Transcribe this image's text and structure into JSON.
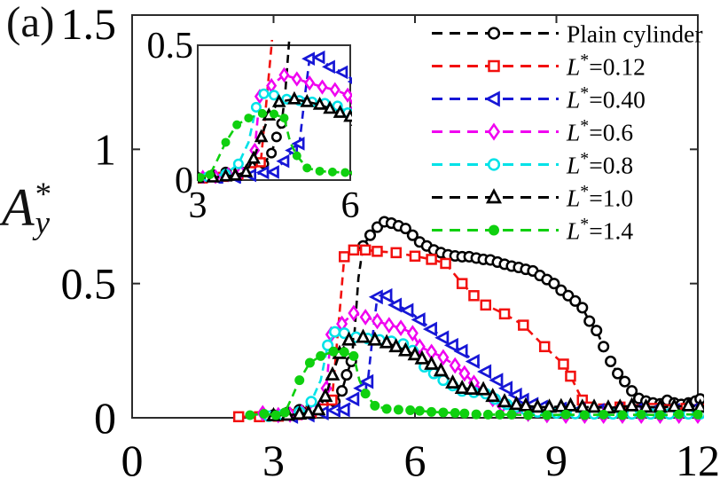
{
  "panel_label": "(a)",
  "chart_data": {
    "type": "line",
    "title": "",
    "xlabel": "",
    "ylabel": {
      "base": "A",
      "sup": "*",
      "sub": "y"
    },
    "xlim": [
      0,
      12
    ],
    "ylim": [
      0,
      1.5
    ],
    "x_ticks": [
      0,
      3,
      6,
      9,
      12
    ],
    "x_tick_labels": [
      "0",
      "3",
      "6",
      "9",
      "12"
    ],
    "y_ticks": [
      0,
      0.5,
      1,
      1.5
    ],
    "y_tick_labels": [
      "0",
      "0.5",
      "1",
      "1.5"
    ],
    "grid": false,
    "axis_color": "#2b2b2b",
    "background": "#ffffff",
    "legend_position": "upper right",
    "inset": {
      "xlim": [
        3,
        6
      ],
      "ylim": [
        0,
        0.5
      ],
      "x_ticks": [
        3,
        6
      ],
      "x_tick_labels": [
        "3",
        "6"
      ],
      "y_ticks": [
        0,
        0.5
      ],
      "y_tick_labels": [
        "0",
        "0.5"
      ]
    },
    "series": [
      {
        "id": "plain-cylinder",
        "label": {
          "text": "Plain cylinder"
        },
        "color": "#000000",
        "marker": "circle-open",
        "linestyle": "dashed",
        "points": [
          [
            3.0,
            0.01
          ],
          [
            3.3,
            0.02
          ],
          [
            3.55,
            0.03
          ],
          [
            3.8,
            0.04
          ],
          [
            4.05,
            0.05
          ],
          [
            4.3,
            0.06
          ],
          [
            4.45,
            0.1
          ],
          [
            4.55,
            0.16
          ],
          [
            4.65,
            0.21
          ],
          [
            4.72,
            0.32,
            0
          ],
          [
            4.8,
            0.52,
            0
          ],
          [
            4.9,
            0.64
          ],
          [
            5.05,
            0.68
          ],
          [
            5.2,
            0.71
          ],
          [
            5.35,
            0.73
          ],
          [
            5.5,
            0.725
          ],
          [
            5.65,
            0.715
          ],
          [
            5.8,
            0.705
          ],
          [
            5.95,
            0.68
          ],
          [
            6.1,
            0.655
          ],
          [
            6.25,
            0.64
          ],
          [
            6.4,
            0.625
          ],
          [
            6.55,
            0.615
          ],
          [
            6.7,
            0.607
          ],
          [
            6.85,
            0.603
          ],
          [
            7.0,
            0.6
          ],
          [
            7.15,
            0.6
          ],
          [
            7.3,
            0.595
          ],
          [
            7.45,
            0.59
          ],
          [
            7.6,
            0.588
          ],
          [
            7.75,
            0.58
          ],
          [
            7.9,
            0.572
          ],
          [
            8.05,
            0.565
          ],
          [
            8.2,
            0.56
          ],
          [
            8.35,
            0.553
          ],
          [
            8.5,
            0.547
          ],
          [
            8.65,
            0.53
          ],
          [
            8.8,
            0.515
          ],
          [
            8.95,
            0.5
          ],
          [
            9.1,
            0.475
          ],
          [
            9.25,
            0.455
          ],
          [
            9.4,
            0.435
          ],
          [
            9.55,
            0.41
          ],
          [
            9.7,
            0.36
          ],
          [
            9.85,
            0.325
          ],
          [
            10.0,
            0.265
          ],
          [
            10.15,
            0.21
          ],
          [
            10.3,
            0.165
          ],
          [
            10.45,
            0.135
          ],
          [
            10.6,
            0.1
          ],
          [
            10.75,
            0.072
          ],
          [
            10.9,
            0.062
          ],
          [
            11.05,
            0.055
          ],
          [
            11.2,
            0.052
          ],
          [
            11.35,
            0.065
          ],
          [
            11.5,
            0.055
          ],
          [
            11.65,
            0.05
          ],
          [
            11.8,
            0.055
          ],
          [
            11.95,
            0.062
          ],
          [
            12.05,
            0.07
          ]
        ]
      },
      {
        "id": "L-0.12",
        "label": {
          "base": "L",
          "sup": "*",
          "suffix": "=0.12"
        },
        "color": "#f2100e",
        "marker": "square-open",
        "linestyle": "dashed",
        "points": [
          [
            2.26,
            0.004
          ],
          [
            2.7,
            0.004
          ],
          [
            3.1,
            0.006
          ],
          [
            3.5,
            0.012
          ],
          [
            3.8,
            0.02
          ],
          [
            4.05,
            0.033
          ],
          [
            4.24,
            0.066
          ],
          [
            4.38,
            0.35,
            0
          ],
          [
            4.5,
            0.6
          ],
          [
            4.7,
            0.625
          ],
          [
            4.95,
            0.625
          ],
          [
            5.2,
            0.62
          ],
          [
            5.6,
            0.615
          ],
          [
            6.0,
            0.602
          ],
          [
            6.35,
            0.59
          ],
          [
            6.65,
            0.575
          ],
          [
            7.0,
            0.5
          ],
          [
            7.25,
            0.455
          ],
          [
            7.5,
            0.42
          ],
          [
            7.9,
            0.387
          ],
          [
            8.3,
            0.345
          ],
          [
            8.75,
            0.265
          ],
          [
            9.15,
            0.2
          ],
          [
            9.3,
            0.155
          ],
          [
            9.55,
            0.066
          ],
          [
            9.7,
            0.04
          ],
          [
            10.0,
            0.033
          ],
          [
            10.35,
            0.04
          ],
          [
            10.7,
            0.03
          ],
          [
            11.05,
            0.035
          ],
          [
            11.4,
            0.03
          ],
          [
            11.75,
            0.035
          ],
          [
            12.05,
            0.032
          ]
        ]
      },
      {
        "id": "L-0.40",
        "label": {
          "base": "L",
          "sup": "*",
          "suffix": "=0.40"
        },
        "color": "#1616d6",
        "marker": "triangle-left-open",
        "linestyle": "dashed",
        "points": [
          [
            3.4,
            0.005
          ],
          [
            3.75,
            0.01
          ],
          [
            4.05,
            0.018
          ],
          [
            4.3,
            0.028
          ],
          [
            4.5,
            0.03
          ],
          [
            4.7,
            0.07
          ],
          [
            4.87,
            0.11
          ],
          [
            5.0,
            0.135
          ],
          [
            5.1,
            0.3,
            0
          ],
          [
            5.2,
            0.45
          ],
          [
            5.4,
            0.455
          ],
          [
            5.6,
            0.42
          ],
          [
            5.85,
            0.4
          ],
          [
            6.1,
            0.365
          ],
          [
            6.35,
            0.33
          ],
          [
            6.6,
            0.298
          ],
          [
            6.8,
            0.27
          ],
          [
            7.0,
            0.248
          ],
          [
            7.25,
            0.21
          ],
          [
            7.5,
            0.172
          ],
          [
            7.75,
            0.14
          ],
          [
            7.95,
            0.11
          ],
          [
            8.15,
            0.085
          ],
          [
            8.3,
            0.066
          ],
          [
            8.5,
            0.05
          ],
          [
            8.7,
            0.04
          ],
          [
            9.1,
            0.033
          ],
          [
            9.5,
            0.03
          ],
          [
            9.9,
            0.028
          ],
          [
            10.3,
            0.03
          ],
          [
            10.7,
            0.028
          ],
          [
            11.1,
            0.03
          ],
          [
            11.5,
            0.028
          ],
          [
            11.9,
            0.03
          ]
        ]
      },
      {
        "id": "L-0.6",
        "label": {
          "base": "L",
          "sup": "*",
          "suffix": "=0.6"
        },
        "color": "#f000f0",
        "marker": "diamond-open",
        "linestyle": "dashed",
        "points": [
          [
            2.77,
            0.017
          ],
          [
            3.1,
            0.01
          ],
          [
            3.35,
            0.012
          ],
          [
            3.6,
            0.02
          ],
          [
            3.85,
            0.03
          ],
          [
            4.0,
            0.06,
            0
          ],
          [
            4.12,
            0.11
          ],
          [
            4.22,
            0.31
          ],
          [
            4.45,
            0.35
          ],
          [
            4.7,
            0.39
          ],
          [
            4.95,
            0.375
          ],
          [
            5.2,
            0.36
          ],
          [
            5.45,
            0.345
          ],
          [
            5.7,
            0.335
          ],
          [
            5.95,
            0.315
          ],
          [
            6.1,
            0.265
          ],
          [
            6.35,
            0.245
          ],
          [
            6.6,
            0.225
          ],
          [
            6.85,
            0.195
          ],
          [
            7.05,
            0.165
          ],
          [
            7.25,
            0.13
          ],
          [
            7.45,
            0.1
          ],
          [
            7.65,
            0.07
          ],
          [
            7.85,
            0.045
          ],
          [
            8.1,
            0.025
          ],
          [
            8.4,
            0.015
          ],
          [
            8.8,
            0.01
          ],
          [
            9.2,
            0.008
          ],
          [
            9.6,
            0.008
          ],
          [
            10.0,
            0.008
          ],
          [
            10.4,
            0.008
          ],
          [
            10.8,
            0.008
          ],
          [
            11.2,
            0.008
          ],
          [
            11.6,
            0.008
          ],
          [
            12.0,
            0.008
          ]
        ]
      },
      {
        "id": "L-0.8",
        "label": {
          "base": "L",
          "sup": "*",
          "suffix": "=0.8"
        },
        "color": "#00e2e8",
        "marker": "circle-open",
        "linestyle": "dashed",
        "points": [
          [
            2.9,
            0.006
          ],
          [
            3.2,
            0.012
          ],
          [
            3.55,
            0.022
          ],
          [
            3.8,
            0.06
          ],
          [
            4.0,
            0.14,
            0
          ],
          [
            4.15,
            0.27
          ],
          [
            4.3,
            0.32
          ],
          [
            4.5,
            0.315
          ],
          [
            4.75,
            0.3
          ],
          [
            5.0,
            0.295
          ],
          [
            5.25,
            0.29
          ],
          [
            5.5,
            0.285
          ],
          [
            5.75,
            0.275
          ],
          [
            5.95,
            0.25
          ],
          [
            6.2,
            0.19
          ],
          [
            6.4,
            0.165
          ],
          [
            6.6,
            0.14
          ],
          [
            6.8,
            0.12
          ],
          [
            7.0,
            0.1
          ],
          [
            7.25,
            0.095
          ],
          [
            7.5,
            0.09
          ],
          [
            7.7,
            0.07
          ],
          [
            7.95,
            0.05
          ],
          [
            8.15,
            0.04
          ],
          [
            8.35,
            0.03
          ],
          [
            8.6,
            0.022
          ],
          [
            9.0,
            0.018
          ],
          [
            9.4,
            0.016
          ],
          [
            9.8,
            0.015
          ],
          [
            10.2,
            0.015
          ],
          [
            10.6,
            0.015
          ],
          [
            11.0,
            0.015
          ],
          [
            11.4,
            0.015
          ],
          [
            11.8,
            0.015
          ],
          [
            12.05,
            0.015
          ]
        ]
      },
      {
        "id": "L-1.0",
        "label": {
          "base": "L",
          "sup": "*",
          "suffix": "=1.0"
        },
        "color": "#000000",
        "marker": "triangle-up-open",
        "linestyle": "dashed",
        "points": [
          [
            3.0,
            0.008
          ],
          [
            3.3,
            0.01
          ],
          [
            3.55,
            0.014
          ],
          [
            3.74,
            0.017
          ],
          [
            3.95,
            0.03
          ],
          [
            4.1,
            0.08
          ],
          [
            4.25,
            0.16
          ],
          [
            4.4,
            0.24
          ],
          [
            4.6,
            0.29
          ],
          [
            4.9,
            0.3
          ],
          [
            5.15,
            0.29
          ],
          [
            5.4,
            0.28
          ],
          [
            5.6,
            0.265
          ],
          [
            5.8,
            0.25
          ],
          [
            6.0,
            0.235
          ],
          [
            6.15,
            0.22
          ],
          [
            6.35,
            0.2
          ],
          [
            6.55,
            0.175
          ],
          [
            6.8,
            0.13
          ],
          [
            7.0,
            0.11
          ],
          [
            7.2,
            0.107
          ],
          [
            7.45,
            0.105
          ],
          [
            7.65,
            0.08
          ],
          [
            7.9,
            0.06
          ],
          [
            8.15,
            0.05
          ],
          [
            8.35,
            0.045
          ],
          [
            8.6,
            0.04
          ],
          [
            8.85,
            0.04
          ],
          [
            9.1,
            0.042
          ],
          [
            9.3,
            0.045
          ],
          [
            9.55,
            0.04
          ],
          [
            9.8,
            0.04
          ],
          [
            10.1,
            0.037
          ],
          [
            10.35,
            0.04
          ],
          [
            10.6,
            0.045
          ],
          [
            10.9,
            0.04
          ],
          [
            11.2,
            0.04
          ],
          [
            11.5,
            0.042
          ],
          [
            11.8,
            0.045
          ],
          [
            12.05,
            0.04
          ]
        ]
      },
      {
        "id": "L-1.4",
        "label": {
          "base": "L",
          "sup": "*",
          "suffix": "=1.4"
        },
        "color": "#0fd00f",
        "marker": "circle-filled",
        "linestyle": "dashed",
        "points": [
          [
            2.5,
            0.01
          ],
          [
            2.8,
            0.015
          ],
          [
            3.05,
            0.01
          ],
          [
            3.24,
            0.02
          ],
          [
            3.4,
            0.08,
            0
          ],
          [
            3.55,
            0.14
          ],
          [
            3.77,
            0.205
          ],
          [
            4.0,
            0.23
          ],
          [
            4.27,
            0.247
          ],
          [
            4.5,
            0.245
          ],
          [
            4.7,
            0.23
          ],
          [
            4.82,
            0.14,
            0
          ],
          [
            4.95,
            0.09
          ],
          [
            5.15,
            0.045
          ],
          [
            5.4,
            0.033
          ],
          [
            5.65,
            0.03
          ],
          [
            5.9,
            0.028
          ],
          [
            6.1,
            0.026
          ],
          [
            6.35,
            0.022
          ],
          [
            6.6,
            0.02
          ],
          [
            6.85,
            0.018
          ],
          [
            7.05,
            0.016
          ],
          [
            7.3,
            0.013
          ],
          [
            7.55,
            0.012
          ],
          [
            7.8,
            0.012
          ],
          [
            8.05,
            0.012
          ],
          [
            8.4,
            0.01
          ],
          [
            8.8,
            0.01
          ],
          [
            9.2,
            0.012
          ],
          [
            9.6,
            0.01
          ],
          [
            10.0,
            0.012
          ],
          [
            10.4,
            0.01
          ],
          [
            10.8,
            0.012
          ],
          [
            11.2,
            0.01
          ],
          [
            11.6,
            0.013
          ],
          [
            12.0,
            0.012
          ]
        ]
      }
    ]
  }
}
